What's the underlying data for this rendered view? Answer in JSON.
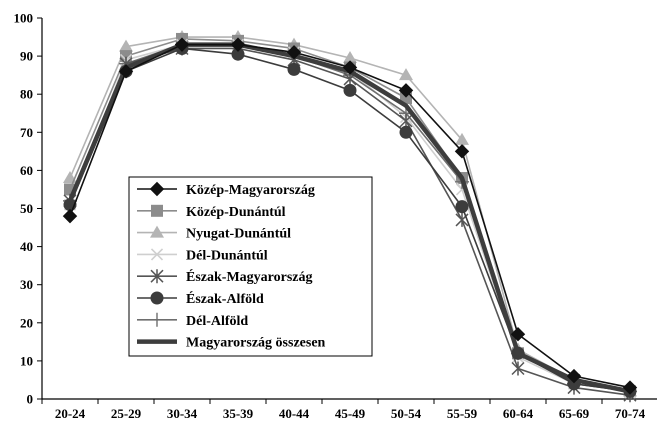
{
  "chart_data": {
    "type": "line",
    "title": "",
    "xlabel": "",
    "ylabel": "",
    "categories": [
      "20-24",
      "25-29",
      "30-34",
      "35-39",
      "40-44",
      "45-49",
      "50-54",
      "55-59",
      "60-64",
      "65-69",
      "70-74"
    ],
    "ylim": [
      0,
      100
    ],
    "yticks": [
      0,
      10,
      20,
      30,
      40,
      50,
      60,
      70,
      80,
      90,
      100
    ],
    "grid": false,
    "legend_position": "center-left",
    "series": [
      {
        "name": "Közép-Magyarország",
        "marker": "diamond",
        "color": "#111111",
        "values": [
          48,
          86,
          93,
          93,
          91,
          87,
          81,
          65,
          17,
          6,
          3
        ]
      },
      {
        "name": "Közép-Dunántúl",
        "marker": "square",
        "color": "#8c8c8c",
        "values": [
          55,
          90,
          94.5,
          94,
          92,
          87,
          79,
          58,
          12,
          5,
          2
        ]
      },
      {
        "name": "Nyugat-Dunántúl",
        "marker": "triangle",
        "color": "#b4b4b4",
        "values": [
          58,
          92.5,
          95,
          95,
          93,
          89.5,
          85,
          68,
          13,
          5,
          2
        ]
      },
      {
        "name": "Dél-Dunántúl",
        "marker": "x",
        "color": "#cfcfcf",
        "values": [
          51,
          89,
          93,
          93,
          91,
          86,
          74,
          55,
          11,
          4,
          2
        ]
      },
      {
        "name": "Észak-Magyarország",
        "marker": "star",
        "color": "#555555",
        "values": [
          52,
          88,
          92,
          92,
          89,
          84,
          73,
          47,
          8,
          3,
          1
        ]
      },
      {
        "name": "Észak-Alföld",
        "marker": "circle",
        "color": "#3c3c3c",
        "values": [
          51,
          86,
          92,
          90.5,
          86.5,
          81,
          70,
          50.5,
          12,
          4,
          2
        ]
      },
      {
        "name": "Dél-Alföld",
        "marker": "plus",
        "color": "#6e6e6e",
        "values": [
          52,
          88,
          93,
          93,
          90,
          85,
          75,
          57,
          12,
          4,
          2
        ]
      },
      {
        "name": "Magyarország összesen",
        "marker": "none",
        "color": "#3d3d3d",
        "values": [
          52,
          87,
          93,
          93,
          90,
          86,
          77,
          58,
          12,
          5,
          2
        ]
      }
    ]
  }
}
